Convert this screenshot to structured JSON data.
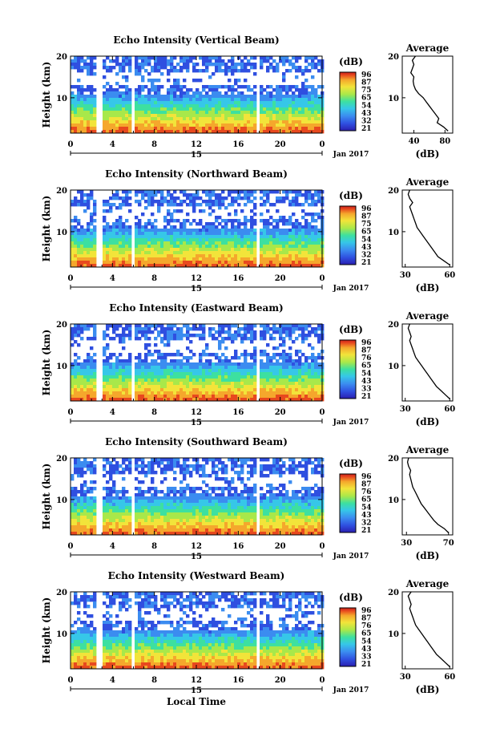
{
  "figure": {
    "x_axis_title": "Local Time",
    "date_label": "Jan 2017",
    "day_label": "15",
    "avg_ylabel": "(dB)",
    "height_label": "Height (km)",
    "colorbar_unit": "(dB)",
    "avg_title": "Average",
    "colormap": [
      "#2a1fb0",
      "#2f4fe0",
      "#3b8cf0",
      "#36c7e8",
      "#3de0a0",
      "#a8e84a",
      "#f2e43a",
      "#f5a72c",
      "#e8491e",
      "#c81e1a"
    ]
  },
  "chart_data": [
    {
      "type": "heatmap",
      "title": "Echo Intensity (Vertical Beam)",
      "xlabel": "Local Time",
      "ylabel": "Height (km)",
      "xlim": [
        0,
        24
      ],
      "ylim": [
        1.5,
        20
      ],
      "x_ticks": [
        "0",
        "4",
        "8",
        "12",
        "16",
        "20",
        "0"
      ],
      "y_ticks": [
        "10",
        "20"
      ],
      "colorbar_ticks": [
        "96",
        "87",
        "75",
        "65",
        "54",
        "43",
        "32",
        "21"
      ],
      "gaps_hours": [
        [
          2.3,
          2.45
        ],
        [
          2.7,
          3.0
        ],
        [
          5.7,
          6.0
        ],
        [
          17.6,
          17.9
        ]
      ],
      "average": {
        "title": "Average",
        "xlabel": "(dB)",
        "x_ticks": [
          "40",
          "80"
        ],
        "xlim": [
          25,
          90
        ],
        "height": [
          2,
          3,
          4,
          5,
          6,
          7,
          8,
          9,
          10,
          11,
          12,
          13,
          14,
          15,
          16,
          17,
          18,
          19,
          20
        ],
        "value": [
          84,
          78,
          70,
          72,
          68,
          64,
          60,
          56,
          52,
          46,
          42,
          40,
          39,
          40,
          36,
          38,
          40,
          38,
          42
        ]
      }
    },
    {
      "type": "heatmap",
      "title": "Echo Intensity (Northward Beam)",
      "xlabel": "Local Time",
      "ylabel": "Height (km)",
      "xlim": [
        0,
        24
      ],
      "ylim": [
        1.5,
        20
      ],
      "x_ticks": [
        "0",
        "4",
        "8",
        "12",
        "16",
        "20",
        "0"
      ],
      "y_ticks": [
        "10",
        "20"
      ],
      "colorbar_ticks": [
        "96",
        "87",
        "75",
        "65",
        "54",
        "43",
        "32",
        "21"
      ],
      "gaps_hours": [
        [
          2.3,
          2.45
        ],
        [
          2.7,
          3.0
        ],
        [
          5.7,
          6.0
        ],
        [
          17.6,
          17.9
        ]
      ],
      "average": {
        "title": "Average",
        "xlabel": "(dB)",
        "x_ticks": [
          "30",
          "60"
        ],
        "xlim": [
          28,
          62
        ],
        "height": [
          2,
          3,
          4,
          5,
          6,
          7,
          8,
          9,
          10,
          11,
          12,
          13,
          14,
          15,
          16,
          17,
          18,
          19,
          20
        ],
        "value": [
          60,
          56,
          52,
          50,
          48,
          46,
          44,
          42,
          40,
          38,
          37,
          36,
          35,
          34,
          33,
          35,
          33,
          32,
          33
        ]
      }
    },
    {
      "type": "heatmap",
      "title": "Echo Intensity (Eastward Beam)",
      "xlabel": "Local Time",
      "ylabel": "Height (km)",
      "xlim": [
        0,
        24
      ],
      "ylim": [
        1.5,
        20
      ],
      "x_ticks": [
        "0",
        "4",
        "8",
        "12",
        "16",
        "20",
        "0"
      ],
      "y_ticks": [
        "10",
        "20"
      ],
      "colorbar_ticks": [
        "96",
        "87",
        "76",
        "65",
        "54",
        "43",
        "33",
        "21"
      ],
      "gaps_hours": [
        [
          2.3,
          2.45
        ],
        [
          2.7,
          3.0
        ],
        [
          5.7,
          6.0
        ],
        [
          17.6,
          17.9
        ]
      ],
      "average": {
        "title": "Average",
        "xlabel": "(dB)",
        "x_ticks": [
          "30",
          "60"
        ],
        "xlim": [
          28,
          62
        ],
        "height": [
          2,
          3,
          4,
          5,
          6,
          7,
          8,
          9,
          10,
          11,
          12,
          13,
          14,
          15,
          16,
          17,
          18,
          19,
          20
        ],
        "value": [
          60,
          57,
          54,
          51,
          49,
          47,
          45,
          43,
          41,
          39,
          37,
          36,
          35,
          34,
          33,
          34,
          33,
          32,
          33
        ]
      }
    },
    {
      "type": "heatmap",
      "title": "Echo Intensity (Southward Beam)",
      "xlabel": "Local Time",
      "ylabel": "Height (km)",
      "xlim": [
        0,
        24
      ],
      "ylim": [
        1.5,
        20
      ],
      "x_ticks": [
        "0",
        "4",
        "8",
        "12",
        "16",
        "20",
        "0"
      ],
      "y_ticks": [
        "10",
        "20"
      ],
      "colorbar_ticks": [
        "96",
        "87",
        "76",
        "65",
        "54",
        "43",
        "32",
        "21"
      ],
      "gaps_hours": [
        [
          2.3,
          2.45
        ],
        [
          2.7,
          3.0
        ],
        [
          5.7,
          6.0
        ],
        [
          17.6,
          17.9
        ]
      ],
      "average": {
        "title": "Average",
        "xlabel": "(dB)",
        "x_ticks": [
          "30",
          "70"
        ],
        "xlim": [
          26,
          74
        ],
        "height": [
          2,
          3,
          4,
          5,
          6,
          7,
          8,
          9,
          10,
          11,
          12,
          13,
          14,
          15,
          16,
          17,
          18,
          19,
          20
        ],
        "value": [
          70,
          66,
          60,
          56,
          53,
          50,
          47,
          44,
          42,
          40,
          38,
          36,
          35,
          34,
          33,
          34,
          32,
          31,
          32
        ]
      }
    },
    {
      "type": "heatmap",
      "title": "Echo Intensity (Westward Beam)",
      "xlabel": "Local Time",
      "ylabel": "Height (km)",
      "xlim": [
        0,
        24
      ],
      "ylim": [
        1.5,
        20
      ],
      "x_ticks": [
        "0",
        "4",
        "8",
        "12",
        "16",
        "20",
        "0"
      ],
      "y_ticks": [
        "10",
        "20"
      ],
      "colorbar_ticks": [
        "96",
        "87",
        "76",
        "65",
        "54",
        "43",
        "33",
        "21"
      ],
      "gaps_hours": [
        [
          2.3,
          2.45
        ],
        [
          2.7,
          3.0
        ],
        [
          5.7,
          6.0
        ],
        [
          17.6,
          17.9
        ]
      ],
      "average": {
        "title": "Average",
        "xlabel": "(dB)",
        "x_ticks": [
          "30",
          "60"
        ],
        "xlim": [
          28,
          62
        ],
        "height": [
          2,
          3,
          4,
          5,
          6,
          7,
          8,
          9,
          10,
          11,
          12,
          13,
          14,
          15,
          16,
          17,
          18,
          19,
          20
        ],
        "value": [
          60,
          57,
          54,
          51,
          49,
          47,
          45,
          43,
          41,
          39,
          37,
          36,
          35,
          34,
          33,
          34,
          33,
          32,
          34
        ]
      }
    }
  ]
}
